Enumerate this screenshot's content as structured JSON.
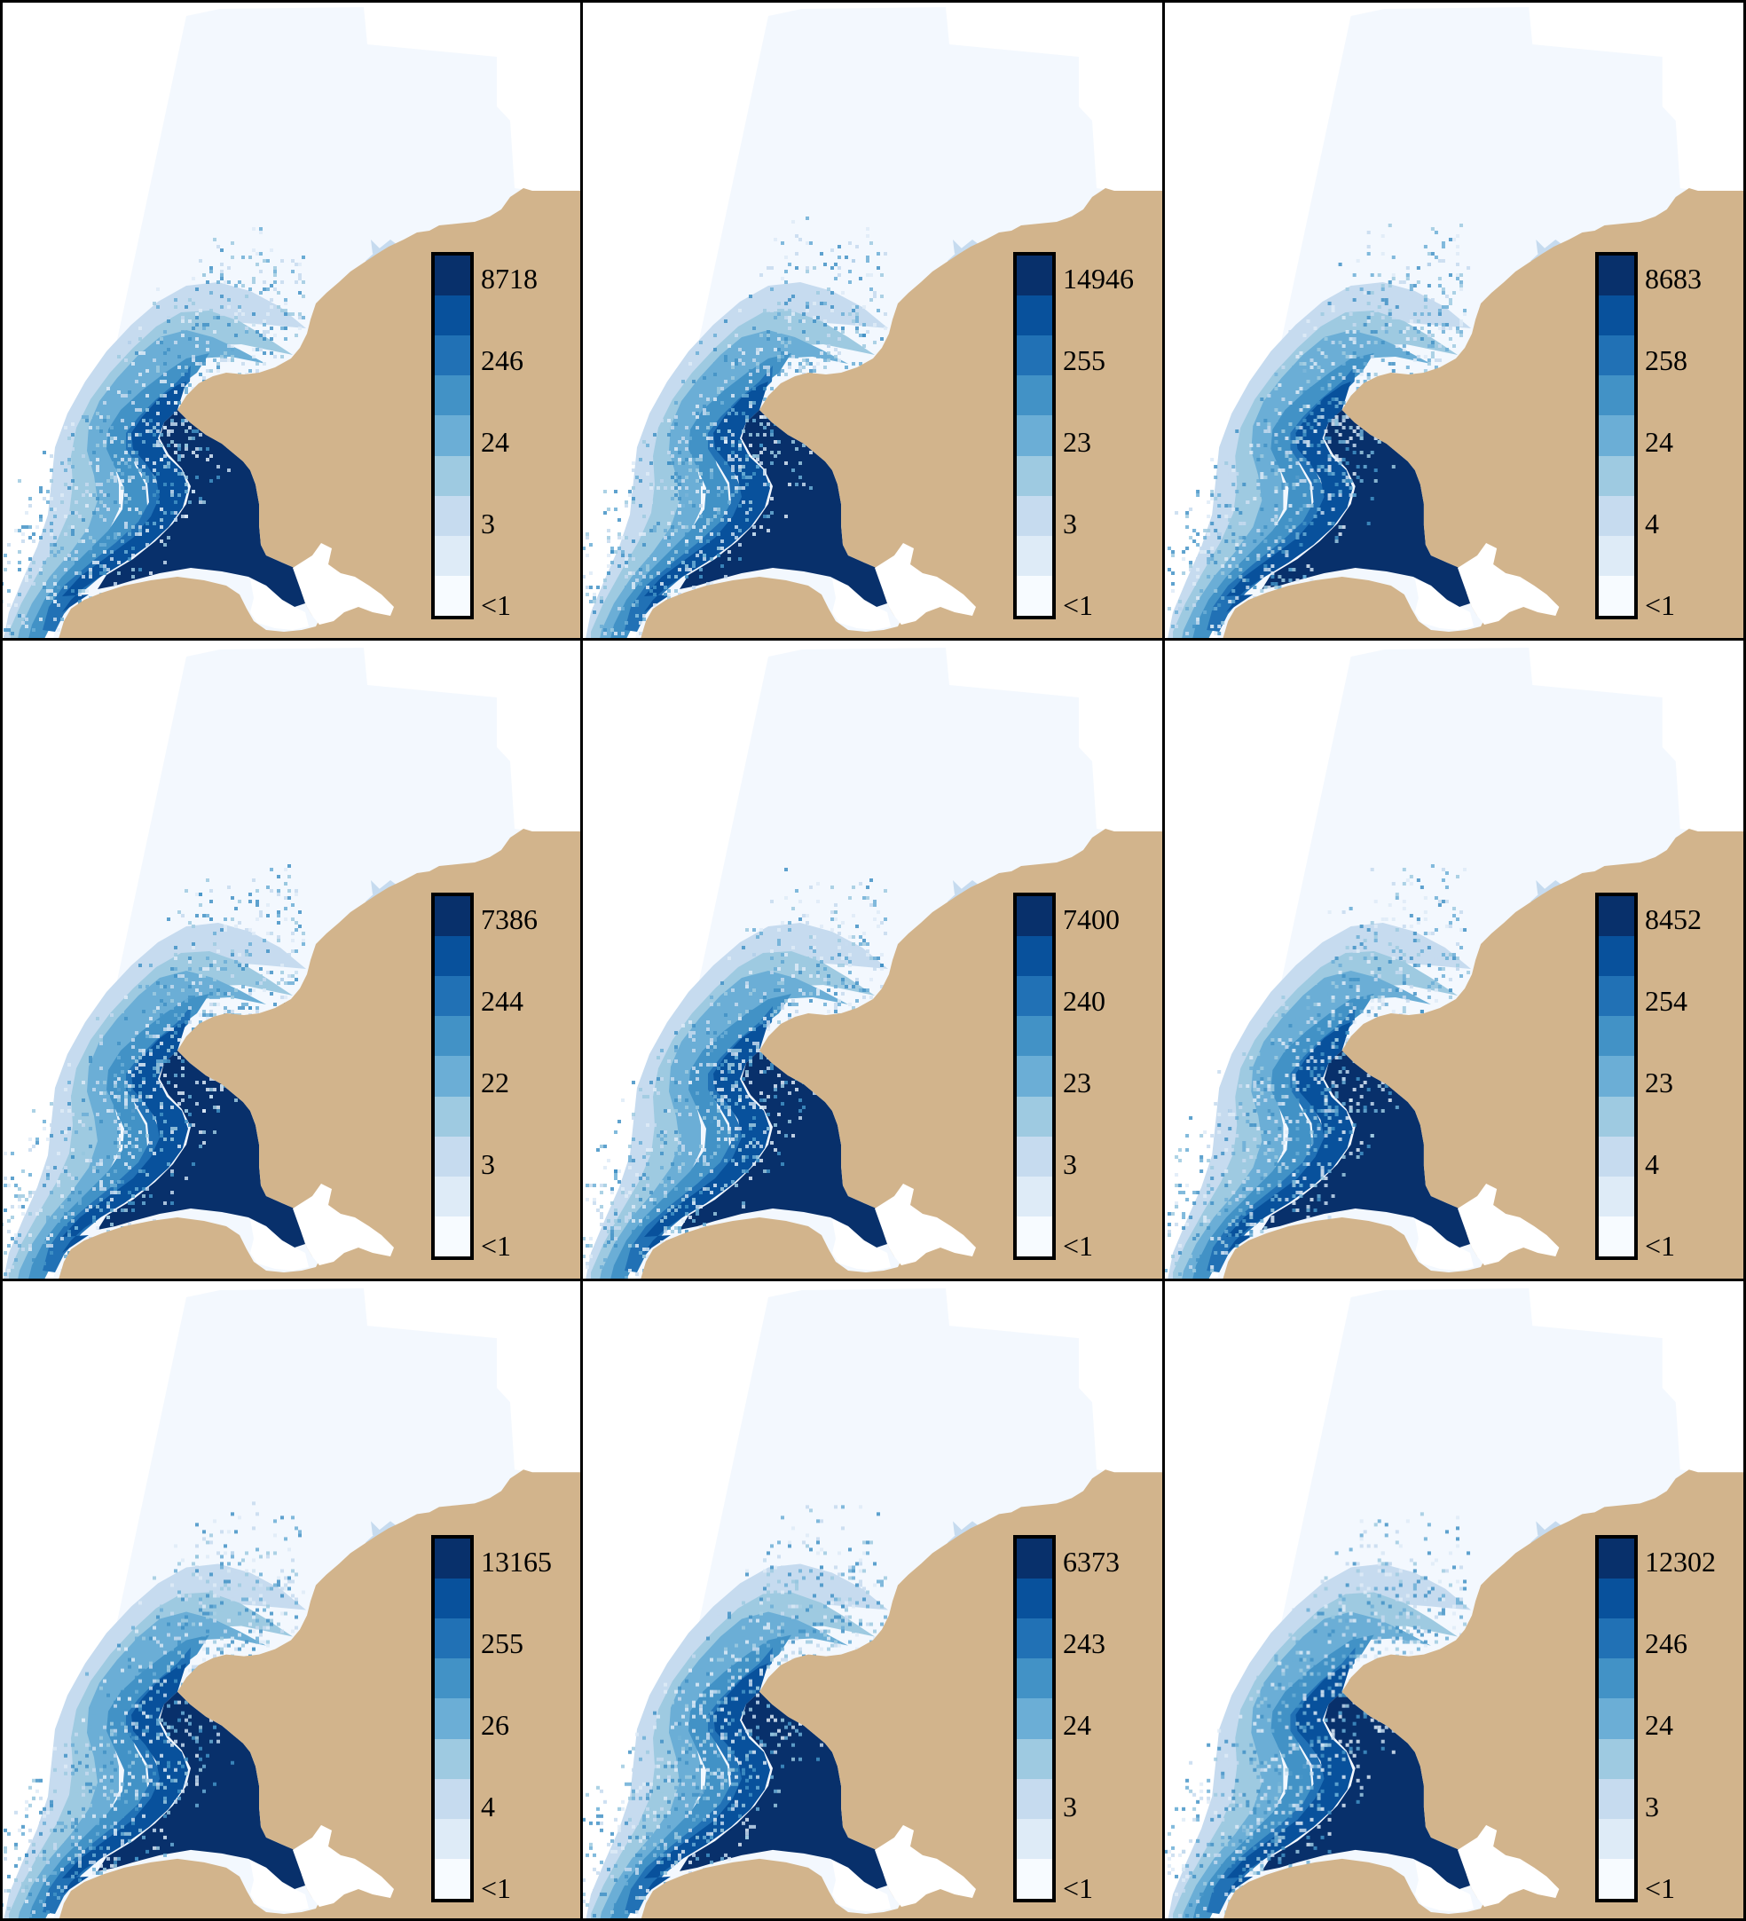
{
  "colors": {
    "land": "#D2B48C",
    "ocean_base": "#F3F8FE",
    "scale": [
      "#F7FBFF",
      "#DEEBF7",
      "#C6DBEF",
      "#9ECAE1",
      "#6BAED6",
      "#4292C6",
      "#2171B5",
      "#08519C",
      "#08306B"
    ]
  },
  "panels": [
    {
      "legend": {
        "labels": [
          "8718",
          "246",
          "24",
          "3",
          "<1"
        ]
      }
    },
    {
      "legend": {
        "labels": [
          "14946",
          "255",
          "23",
          "3",
          "<1"
        ]
      }
    },
    {
      "legend": {
        "labels": [
          "8683",
          "258",
          "24",
          "4",
          "<1"
        ]
      }
    },
    {
      "legend": {
        "labels": [
          "7386",
          "244",
          "22",
          "3",
          "<1"
        ]
      }
    },
    {
      "legend": {
        "labels": [
          "7400",
          "240",
          "23",
          "3",
          "<1"
        ]
      }
    },
    {
      "legend": {
        "labels": [
          "8452",
          "254",
          "23",
          "4",
          "<1"
        ]
      }
    },
    {
      "legend": {
        "labels": [
          "13165",
          "255",
          "26",
          "4",
          "<1"
        ]
      }
    },
    {
      "legend": {
        "labels": [
          "6373",
          "243",
          "24",
          "3",
          "<1"
        ]
      }
    },
    {
      "legend": {
        "labels": [
          "12302",
          "246",
          "24",
          "3",
          "<1"
        ]
      }
    }
  ]
}
